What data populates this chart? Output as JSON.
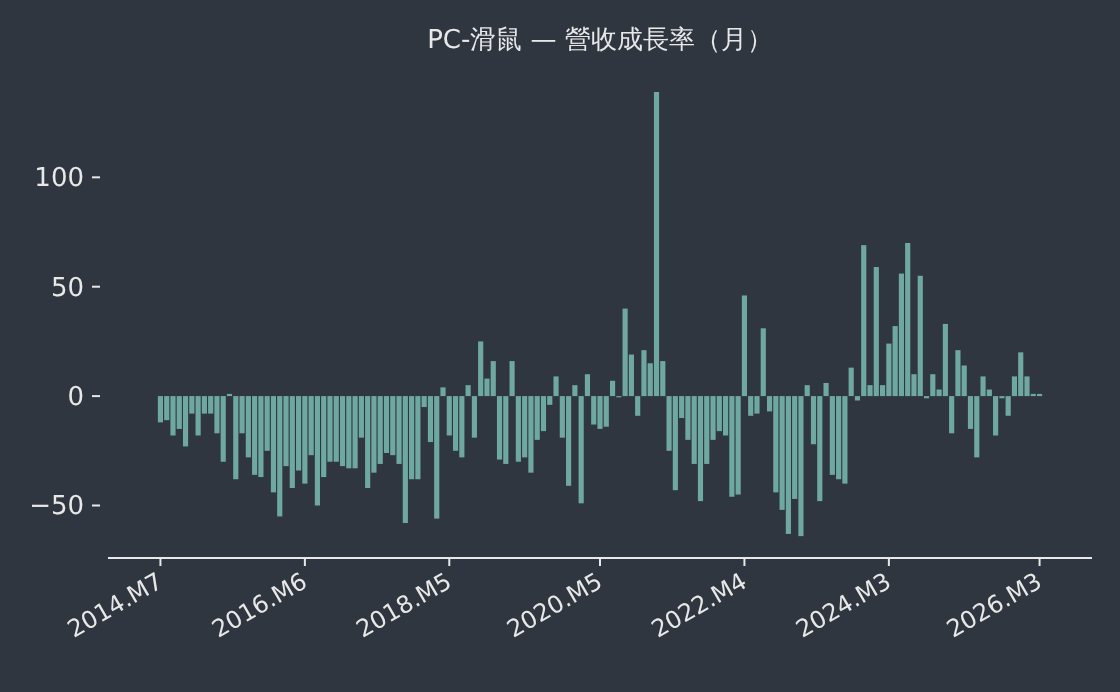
{
  "chart_data": {
    "type": "bar",
    "title": "PC-滑鼠 — 營收成長率（月）",
    "categories": [
      "2014.M7",
      null,
      null,
      null,
      null,
      null,
      null,
      null,
      null,
      null,
      null,
      null,
      null,
      null,
      null,
      null,
      null,
      null,
      null,
      null,
      null,
      null,
      null,
      "2016.M6",
      null,
      null,
      null,
      null,
      null,
      null,
      null,
      null,
      null,
      null,
      null,
      null,
      null,
      null,
      null,
      null,
      null,
      null,
      null,
      null,
      null,
      null,
      "2018.M5",
      null,
      null,
      null,
      null,
      null,
      null,
      null,
      null,
      null,
      null,
      null,
      null,
      null,
      null,
      null,
      null,
      null,
      null,
      null,
      null,
      null,
      null,
      null,
      "2020.M5",
      null,
      null,
      null,
      null,
      null,
      null,
      null,
      null,
      null,
      null,
      null,
      null,
      null,
      null,
      null,
      null,
      null,
      null,
      null,
      null,
      null,
      null,
      "2022.M4",
      null,
      null,
      null,
      null,
      null,
      null,
      null,
      null,
      null,
      null,
      null,
      null,
      null,
      null,
      null,
      null,
      null,
      null,
      null,
      null,
      null,
      null,
      "2024.M3",
      null,
      null,
      null,
      null,
      null,
      null,
      null,
      null,
      null,
      null,
      null,
      null,
      null,
      null,
      null,
      null,
      null,
      null,
      null,
      null,
      null,
      null,
      null,
      "2026.M3"
    ],
    "values": [
      -12,
      -11,
      -18,
      -15,
      -23,
      -8,
      -18,
      -8,
      -8,
      -17,
      -30,
      1,
      -38,
      -17,
      -28,
      -36,
      -37,
      -25,
      -44,
      -55,
      -32,
      -42,
      -34,
      -40,
      -27,
      -50,
      -37,
      -30,
      -30,
      -32,
      -33,
      -33,
      -19,
      -42,
      -35,
      -31,
      -26,
      -27,
      -31,
      -58,
      -38,
      -38,
      -5,
      -21,
      -56,
      4,
      -18,
      -25,
      -28,
      5,
      -19,
      25,
      8,
      16,
      -29,
      -31,
      16,
      -30,
      -28,
      -35,
      -20,
      -16,
      -4,
      9,
      -19,
      -41,
      5,
      -49,
      10,
      -13,
      -15,
      -14,
      7,
      0,
      40,
      19,
      -9,
      21,
      15,
      139,
      16,
      -25,
      -43,
      -10,
      -20,
      -31,
      -48,
      -31,
      -20,
      -16,
      -18,
      -46,
      -45,
      46,
      -9,
      -8,
      31,
      -7,
      -44,
      -52,
      -63,
      -47,
      -64,
      5,
      -22,
      -48,
      6,
      -36,
      -38,
      -40,
      13,
      -2,
      69,
      5,
      59,
      5,
      24,
      32,
      56,
      70,
      10,
      55,
      -1,
      10,
      3,
      33,
      -17,
      21,
      14,
      -15,
      -28,
      9,
      3,
      -18,
      -1,
      -9,
      9,
      20,
      9,
      1,
      1
    ],
    "color": "#6fa8a0",
    "ylim": [
      -74,
      139
    ],
    "yticks": [
      -50,
      0,
      50,
      100
    ],
    "grid": false
  }
}
